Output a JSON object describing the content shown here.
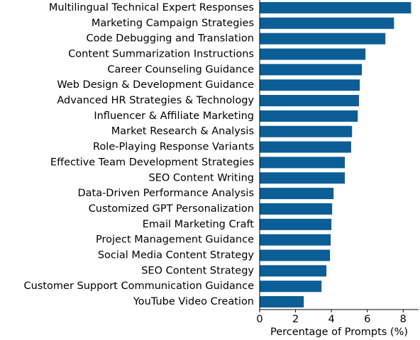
{
  "chart_data": {
    "type": "hbar",
    "categories": [
      "Multilingual Technical Expert Responses",
      "Marketing Campaign Strategies",
      "Code Debugging and Translation",
      "Content Summarization Instructions",
      "Career Counseling Guidance",
      "Web Design & Development Guidance",
      "Advanced HR Strategies & Technology",
      "Influencer & Affiliate Marketing",
      "Market Research & Analysis",
      "Role-Playing Response Variants",
      "Effective Team Development Strategies",
      "SEO Content Writing",
      "Data-Driven Performance Analysis",
      "Customized GPT Personalization",
      "Email Marketing Craft",
      "Project Management Guidance",
      "Social Media Content Strategy",
      "SEO Content Strategy",
      "Customer Support Communication Guidance",
      "YouTube Video Creation"
    ],
    "values": [
      8.44,
      7.49,
      7.01,
      5.9,
      5.7,
      5.58,
      5.54,
      5.47,
      5.15,
      5.1,
      4.75,
      4.75,
      4.12,
      4.04,
      4.0,
      3.96,
      3.92,
      3.72,
      3.45,
      2.46
    ],
    "color": "#0b5e96",
    "xlabel": "Percentage of Prompts (%)",
    "xlim": [
      0,
      8.86
    ],
    "xticks": [
      0,
      2,
      4,
      6,
      8
    ]
  }
}
